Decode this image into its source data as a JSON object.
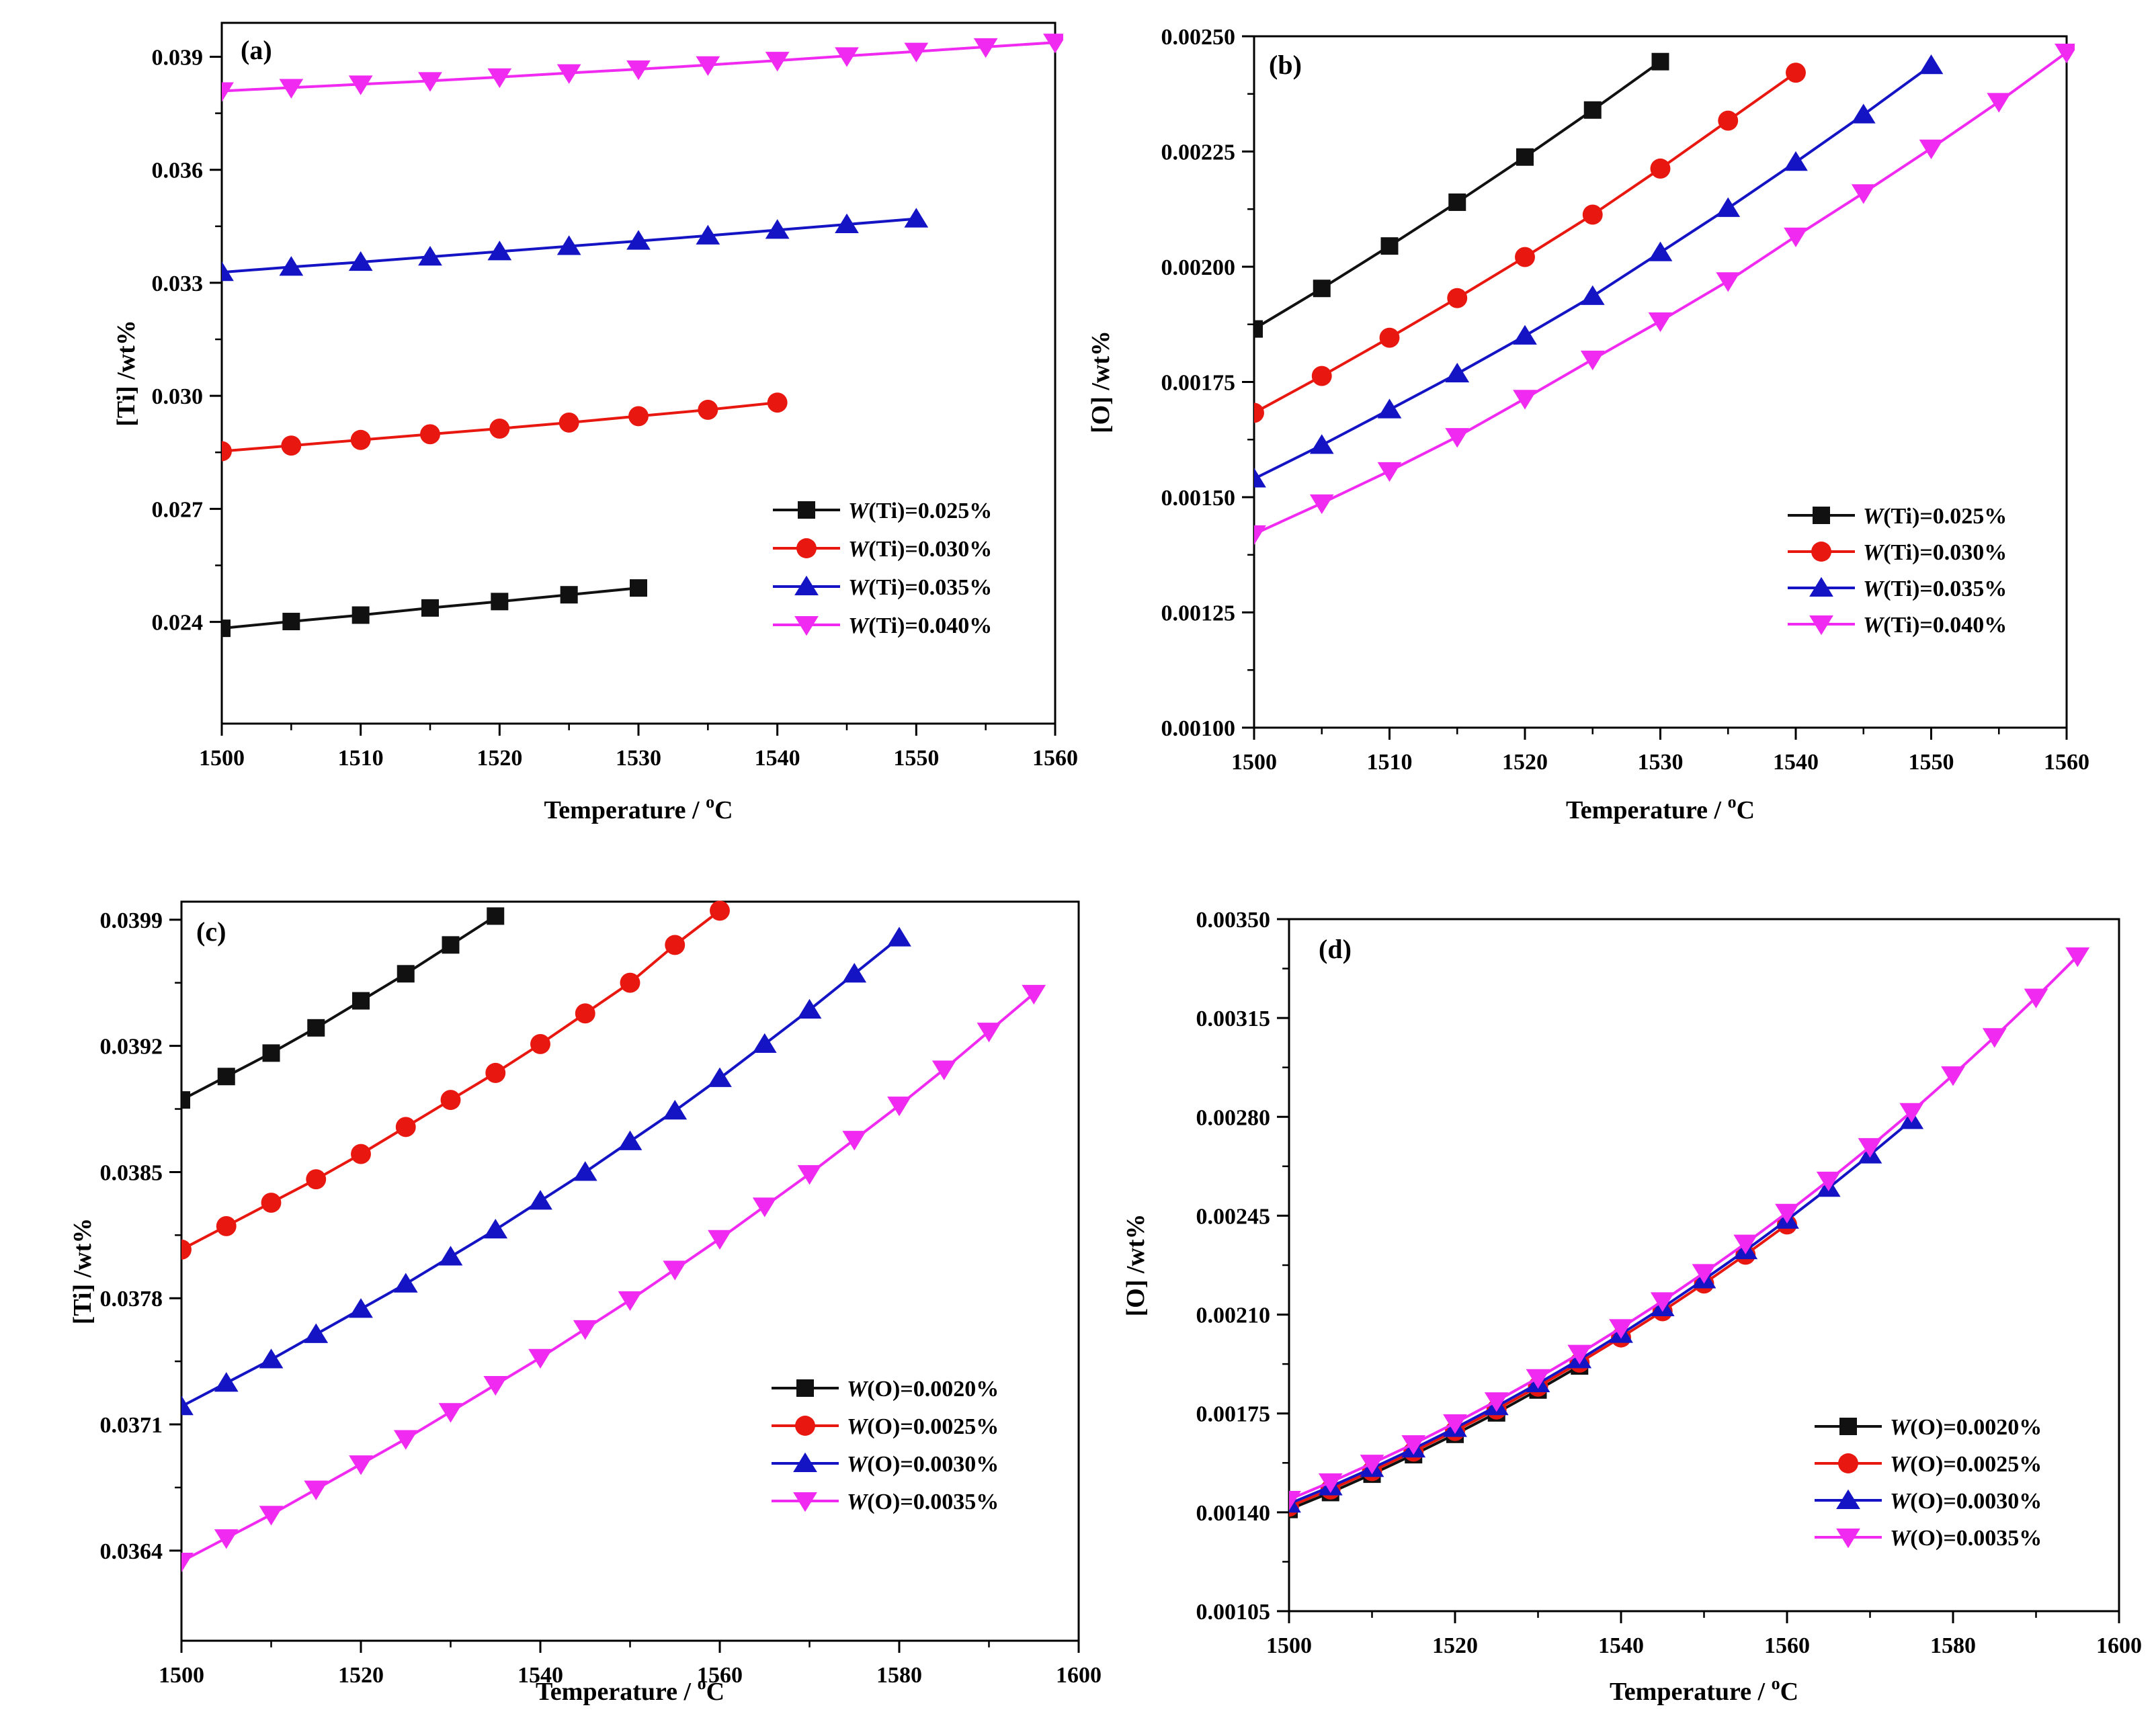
{
  "figure": {
    "colors": {
      "black": "#111111",
      "red": "#e8170f",
      "blue": "#1414c4",
      "magenta": "#f02af0"
    }
  },
  "chart_data": [
    {
      "type": "line",
      "panel_label": "(a)",
      "xlabel": "Temperature / ",
      "xlabel_sup": "o",
      "xlabel_unit": "C",
      "ylabel": "[Ti] /wt%",
      "xlim": [
        1500,
        1560
      ],
      "ylim": [
        0.0213,
        0.0399
      ],
      "xticks": [
        1500,
        1510,
        1520,
        1530,
        1540,
        1550,
        1560
      ],
      "xtick_labels": [
        "1500",
        "1510",
        "1520",
        "1530",
        "1540",
        "1550",
        "1560"
      ],
      "yticks": [
        0.024,
        0.027,
        0.03,
        0.033,
        0.036,
        0.039
      ],
      "ytick_labels": [
        "0.024",
        "0.027",
        "0.030",
        "0.033",
        "0.036",
        "0.039"
      ],
      "legend_position": "bottom-right",
      "series": [
        {
          "name_italic": "W",
          "name_rest": "(Ti)=0.025%",
          "color": "#111111",
          "marker": "square",
          "x": [
            1500,
            1505,
            1510,
            1515,
            1520,
            1525,
            1530
          ],
          "y": [
            0.02383,
            0.02401,
            0.02418,
            0.02437,
            0.02454,
            0.02472,
            0.0249
          ]
        },
        {
          "name_italic": "W",
          "name_rest": "(Ti)=0.030%",
          "color": "#e8170f",
          "marker": "circle",
          "x": [
            1500,
            1505,
            1510,
            1515,
            1520,
            1525,
            1530,
            1535,
            1540
          ],
          "y": [
            0.02853,
            0.02868,
            0.02883,
            0.02898,
            0.02913,
            0.02929,
            0.02946,
            0.02963,
            0.02982
          ]
        },
        {
          "name_italic": "W",
          "name_rest": "(Ti)=0.035%",
          "color": "#1414c4",
          "marker": "triangle-up",
          "x": [
            1500,
            1505,
            1510,
            1515,
            1520,
            1525,
            1530,
            1535,
            1540,
            1545,
            1550
          ],
          "y": [
            0.03328,
            0.03342,
            0.03355,
            0.03369,
            0.03383,
            0.03397,
            0.03411,
            0.03425,
            0.0344,
            0.03455,
            0.0347
          ]
        },
        {
          "name_italic": "W",
          "name_rest": "(Ti)=0.040%",
          "color": "#f02af0",
          "marker": "triangle-down",
          "x": [
            1500,
            1505,
            1510,
            1515,
            1520,
            1525,
            1530,
            1535,
            1540,
            1545,
            1550,
            1555,
            1560
          ],
          "y": [
            0.03809,
            0.03818,
            0.03827,
            0.03836,
            0.03846,
            0.03857,
            0.03867,
            0.03878,
            0.0389,
            0.03902,
            0.03914,
            0.03926,
            0.03938
          ]
        }
      ]
    },
    {
      "type": "line",
      "panel_label": "(b)",
      "xlabel": "Temperature / ",
      "xlabel_sup": "o",
      "xlabel_unit": "C",
      "ylabel": "[O] /wt%",
      "xlim": [
        1500,
        1560
      ],
      "ylim": [
        0.001,
        0.0025
      ],
      "xticks": [
        1500,
        1510,
        1520,
        1530,
        1540,
        1550,
        1560
      ],
      "xtick_labels": [
        "1500",
        "1510",
        "1520",
        "1530",
        "1540",
        "1550",
        "1560"
      ],
      "yticks": [
        0.001,
        0.00125,
        0.0015,
        0.00175,
        0.002,
        0.00225,
        0.0025
      ],
      "ytick_labels": [
        "0.00100",
        "0.00125",
        "0.00150",
        "0.00175",
        "0.00200",
        "0.00225",
        "0.00250"
      ],
      "legend_position": "bottom-right",
      "series": [
        {
          "name_italic": "W",
          "name_rest": "(Ti)=0.025%",
          "color": "#111111",
          "marker": "square",
          "x": [
            1500,
            1505,
            1510,
            1515,
            1520,
            1525,
            1530
          ],
          "y": [
            0.001865,
            0.001953,
            0.002045,
            0.00214,
            0.002238,
            0.00234,
            0.002445
          ]
        },
        {
          "name_italic": "W",
          "name_rest": "(Ti)=0.030%",
          "color": "#e8170f",
          "marker": "circle",
          "x": [
            1500,
            1505,
            1510,
            1515,
            1520,
            1525,
            1530,
            1535,
            1540
          ],
          "y": [
            0.001683,
            0.001763,
            0.001846,
            0.001932,
            0.002021,
            0.002113,
            0.002213,
            0.002317,
            0.002421
          ]
        },
        {
          "name_italic": "W",
          "name_rest": "(Ti)=0.035%",
          "color": "#1414c4",
          "marker": "triangle-up",
          "x": [
            1500,
            1505,
            1510,
            1515,
            1520,
            1525,
            1530,
            1535,
            1540,
            1545,
            1550
          ],
          "y": [
            0.00154,
            0.001613,
            0.00169,
            0.001768,
            0.00185,
            0.001936,
            0.002031,
            0.002127,
            0.002227,
            0.00233,
            0.002437
          ]
        },
        {
          "name_italic": "W",
          "name_rest": "(Ti)=0.040%",
          "color": "#f02af0",
          "marker": "triangle-down",
          "x": [
            1500,
            1505,
            1510,
            1515,
            1520,
            1525,
            1530,
            1535,
            1540,
            1545,
            1550,
            1555,
            1560
          ],
          "y": [
            0.00142,
            0.001487,
            0.001557,
            0.001631,
            0.001714,
            0.001799,
            0.001882,
            0.001969,
            0.002066,
            0.00216,
            0.002257,
            0.002358,
            0.002465
          ]
        }
      ]
    },
    {
      "type": "line",
      "panel_label": "(c)",
      "xlabel": "Temperature / ",
      "xlabel_sup": "o",
      "xlabel_unit": "C",
      "ylabel": "[Ti] /wt%",
      "xlim": [
        1500,
        1600
      ],
      "ylim": [
        0.0359,
        0.04
      ],
      "xticks": [
        1500,
        1520,
        1540,
        1560,
        1580,
        1600
      ],
      "xtick_labels": [
        "1500",
        "1520",
        "1540",
        "1560",
        "1580",
        "1600"
      ],
      "yticks": [
        0.0364,
        0.0371,
        0.0378,
        0.0385,
        0.0392,
        0.0399
      ],
      "ytick_labels": [
        "0.0364",
        "0.0371",
        "0.0378",
        "0.0385",
        "0.0392",
        "0.0399"
      ],
      "legend_position": "bottom-right",
      "series": [
        {
          "name_italic": "W",
          "name_rest": "(O)=0.0020%",
          "color": "#111111",
          "marker": "square",
          "x": [
            1500,
            1505,
            1510,
            1515,
            1520,
            1525,
            1530,
            1535
          ],
          "y": [
            0.0389,
            0.03903,
            0.03916,
            0.0393,
            0.03945,
            0.0396,
            0.03976,
            0.03992
          ]
        },
        {
          "name_italic": "W",
          "name_rest": "(O)=0.0025%",
          "color": "#e8170f",
          "marker": "circle",
          "x": [
            1500,
            1505,
            1510,
            1515,
            1520,
            1525,
            1530,
            1535,
            1540,
            1545,
            1550,
            1555,
            1560
          ],
          "y": [
            0.03807,
            0.0382,
            0.03833,
            0.03846,
            0.0386,
            0.03875,
            0.0389,
            0.03905,
            0.03921,
            0.03938,
            0.03955,
            0.03976,
            0.03995
          ]
        },
        {
          "name_italic": "W",
          "name_rest": "(O)=0.0030%",
          "color": "#1414c4",
          "marker": "triangle-up",
          "x": [
            1500,
            1505,
            1510,
            1515,
            1520,
            1525,
            1530,
            1535,
            1540,
            1545,
            1550,
            1555,
            1560,
            1565,
            1570,
            1575,
            1580
          ],
          "y": [
            0.0372,
            0.03733,
            0.03746,
            0.0376,
            0.03774,
            0.03788,
            0.03803,
            0.03818,
            0.03834,
            0.0385,
            0.03867,
            0.03884,
            0.03902,
            0.03921,
            0.0394,
            0.0396,
            0.0398
          ]
        },
        {
          "name_italic": "W",
          "name_rest": "(O)=0.0035%",
          "color": "#f02af0",
          "marker": "triangle-down",
          "x": [
            1500,
            1505,
            1510,
            1515,
            1520,
            1525,
            1530,
            1535,
            1540,
            1545,
            1550,
            1555,
            1560,
            1565,
            1570,
            1575,
            1580,
            1585,
            1590,
            1595
          ],
          "y": [
            0.03634,
            0.03647,
            0.0366,
            0.03674,
            0.03688,
            0.03702,
            0.03717,
            0.03732,
            0.03747,
            0.03763,
            0.03779,
            0.03796,
            0.03813,
            0.03831,
            0.03849,
            0.03868,
            0.03887,
            0.03907,
            0.03928,
            0.03949
          ]
        }
      ]
    },
    {
      "type": "line",
      "panel_label": "(d)",
      "xlabel": "Temperature / ",
      "xlabel_sup": "o",
      "xlabel_unit": "C",
      "ylabel": "[O] /wt%",
      "xlim": [
        1500,
        1600
      ],
      "ylim": [
        0.00105,
        0.0035
      ],
      "xticks": [
        1500,
        1520,
        1540,
        1560,
        1580,
        1600
      ],
      "xtick_labels": [
        "1500",
        "1520",
        "1540",
        "1560",
        "1580",
        "1600"
      ],
      "yticks": [
        0.00105,
        0.0014,
        0.00175,
        0.0021,
        0.00245,
        0.0028,
        0.00315,
        0.0035
      ],
      "ytick_labels": [
        "0.00105",
        "0.00140",
        "0.00175",
        "0.00210",
        "0.00245",
        "0.00280",
        "0.00315",
        "0.00350"
      ],
      "legend_position": "bottom-right",
      "series": [
        {
          "name_italic": "W",
          "name_rest": "(O)=0.0020%",
          "color": "#111111",
          "marker": "square",
          "x": [
            1500,
            1505,
            1510,
            1515,
            1520,
            1525,
            1530,
            1535
          ],
          "y": [
            0.00141,
            0.00147,
            0.001535,
            0.001604,
            0.001676,
            0.001752,
            0.001833,
            0.001918
          ]
        },
        {
          "name_italic": "W",
          "name_rest": "(O)=0.0025%",
          "color": "#e8170f",
          "marker": "circle",
          "x": [
            1500,
            1505,
            1510,
            1515,
            1520,
            1525,
            1530,
            1535,
            1540,
            1545,
            1550,
            1555,
            1560
          ],
          "y": [
            0.00142,
            0.001481,
            0.001546,
            0.001615,
            0.001688,
            0.001764,
            0.001845,
            0.00193,
            0.002019,
            0.002112,
            0.00221,
            0.002312,
            0.002419
          ]
        },
        {
          "name_italic": "W",
          "name_rest": "(O)=0.0030%",
          "color": "#1414c4",
          "marker": "triangle-up",
          "x": [
            1500,
            1505,
            1510,
            1515,
            1520,
            1525,
            1530,
            1535,
            1540,
            1545,
            1550,
            1555,
            1560,
            1565,
            1570,
            1575
          ],
          "y": [
            0.00143,
            0.001491,
            0.001556,
            0.001625,
            0.001698,
            0.001775,
            0.001856,
            0.001941,
            0.002031,
            0.002125,
            0.002224,
            0.002327,
            0.002435,
            0.002548,
            0.002666,
            0.002788
          ]
        },
        {
          "name_italic": "W",
          "name_rest": "(O)=0.0035%",
          "color": "#f02af0",
          "marker": "triangle-down",
          "x": [
            1500,
            1505,
            1510,
            1515,
            1520,
            1525,
            1530,
            1535,
            1540,
            1545,
            1550,
            1555,
            1560,
            1565,
            1570,
            1575,
            1580,
            1585,
            1590,
            1595
          ],
          "y": [
            0.001445,
            0.001507,
            0.001573,
            0.001642,
            0.001716,
            0.001794,
            0.001876,
            0.001962,
            0.002053,
            0.002148,
            0.002248,
            0.002352,
            0.002461,
            0.002575,
            0.002694,
            0.002818,
            0.002948,
            0.003083,
            0.003223,
            0.003369
          ]
        }
      ]
    }
  ]
}
